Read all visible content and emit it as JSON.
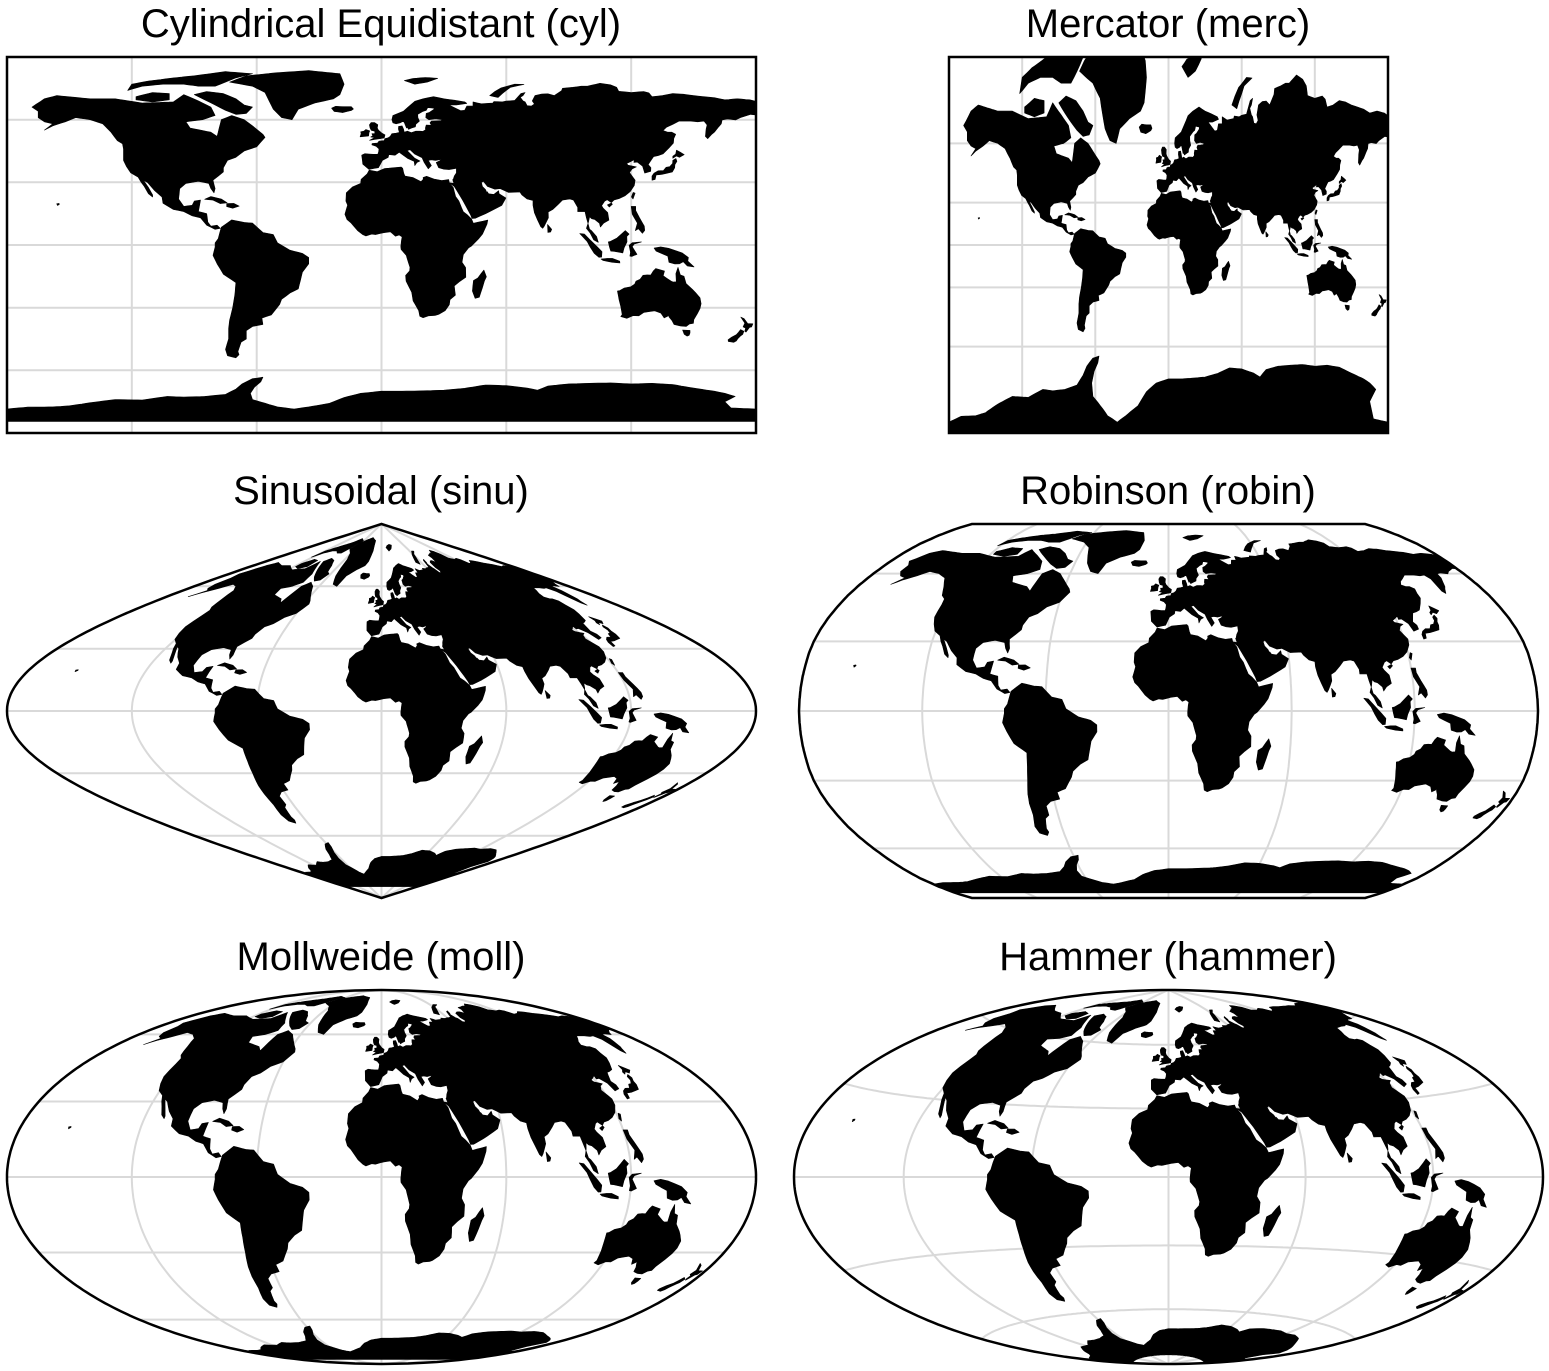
{
  "maps": [
    {
      "title": "Cylindrical Equidistant (cyl)",
      "projection": "cyl",
      "frame": "rectangle",
      "gridlines": true,
      "land_color": "#000000",
      "ocean_color": "#ffffff"
    },
    {
      "title": "Mercator (merc)",
      "projection": "merc",
      "frame": "rectangle",
      "gridlines": true,
      "land_color": "#000000",
      "ocean_color": "#ffffff"
    },
    {
      "title": "Sinusoidal (sinu)",
      "projection": "sinu",
      "frame": "sinusoid",
      "gridlines": true,
      "land_color": "#000000",
      "ocean_color": "#ffffff"
    },
    {
      "title": "Robinson (robin)",
      "projection": "robin",
      "frame": "robinson",
      "gridlines": true,
      "land_color": "#000000",
      "ocean_color": "#ffffff"
    },
    {
      "title": "Mollweide (moll)",
      "projection": "moll",
      "frame": "ellipse",
      "gridlines": true,
      "land_color": "#000000",
      "ocean_color": "#ffffff"
    },
    {
      "title": "Hammer (hammer)",
      "projection": "hammer",
      "frame": "ellipse",
      "gridlines": true,
      "land_color": "#000000",
      "ocean_color": "#ffffff"
    }
  ],
  "graticule": {
    "color": "#d9d9d9",
    "lon_step_deg": 60,
    "lat_step_deg": 30
  }
}
